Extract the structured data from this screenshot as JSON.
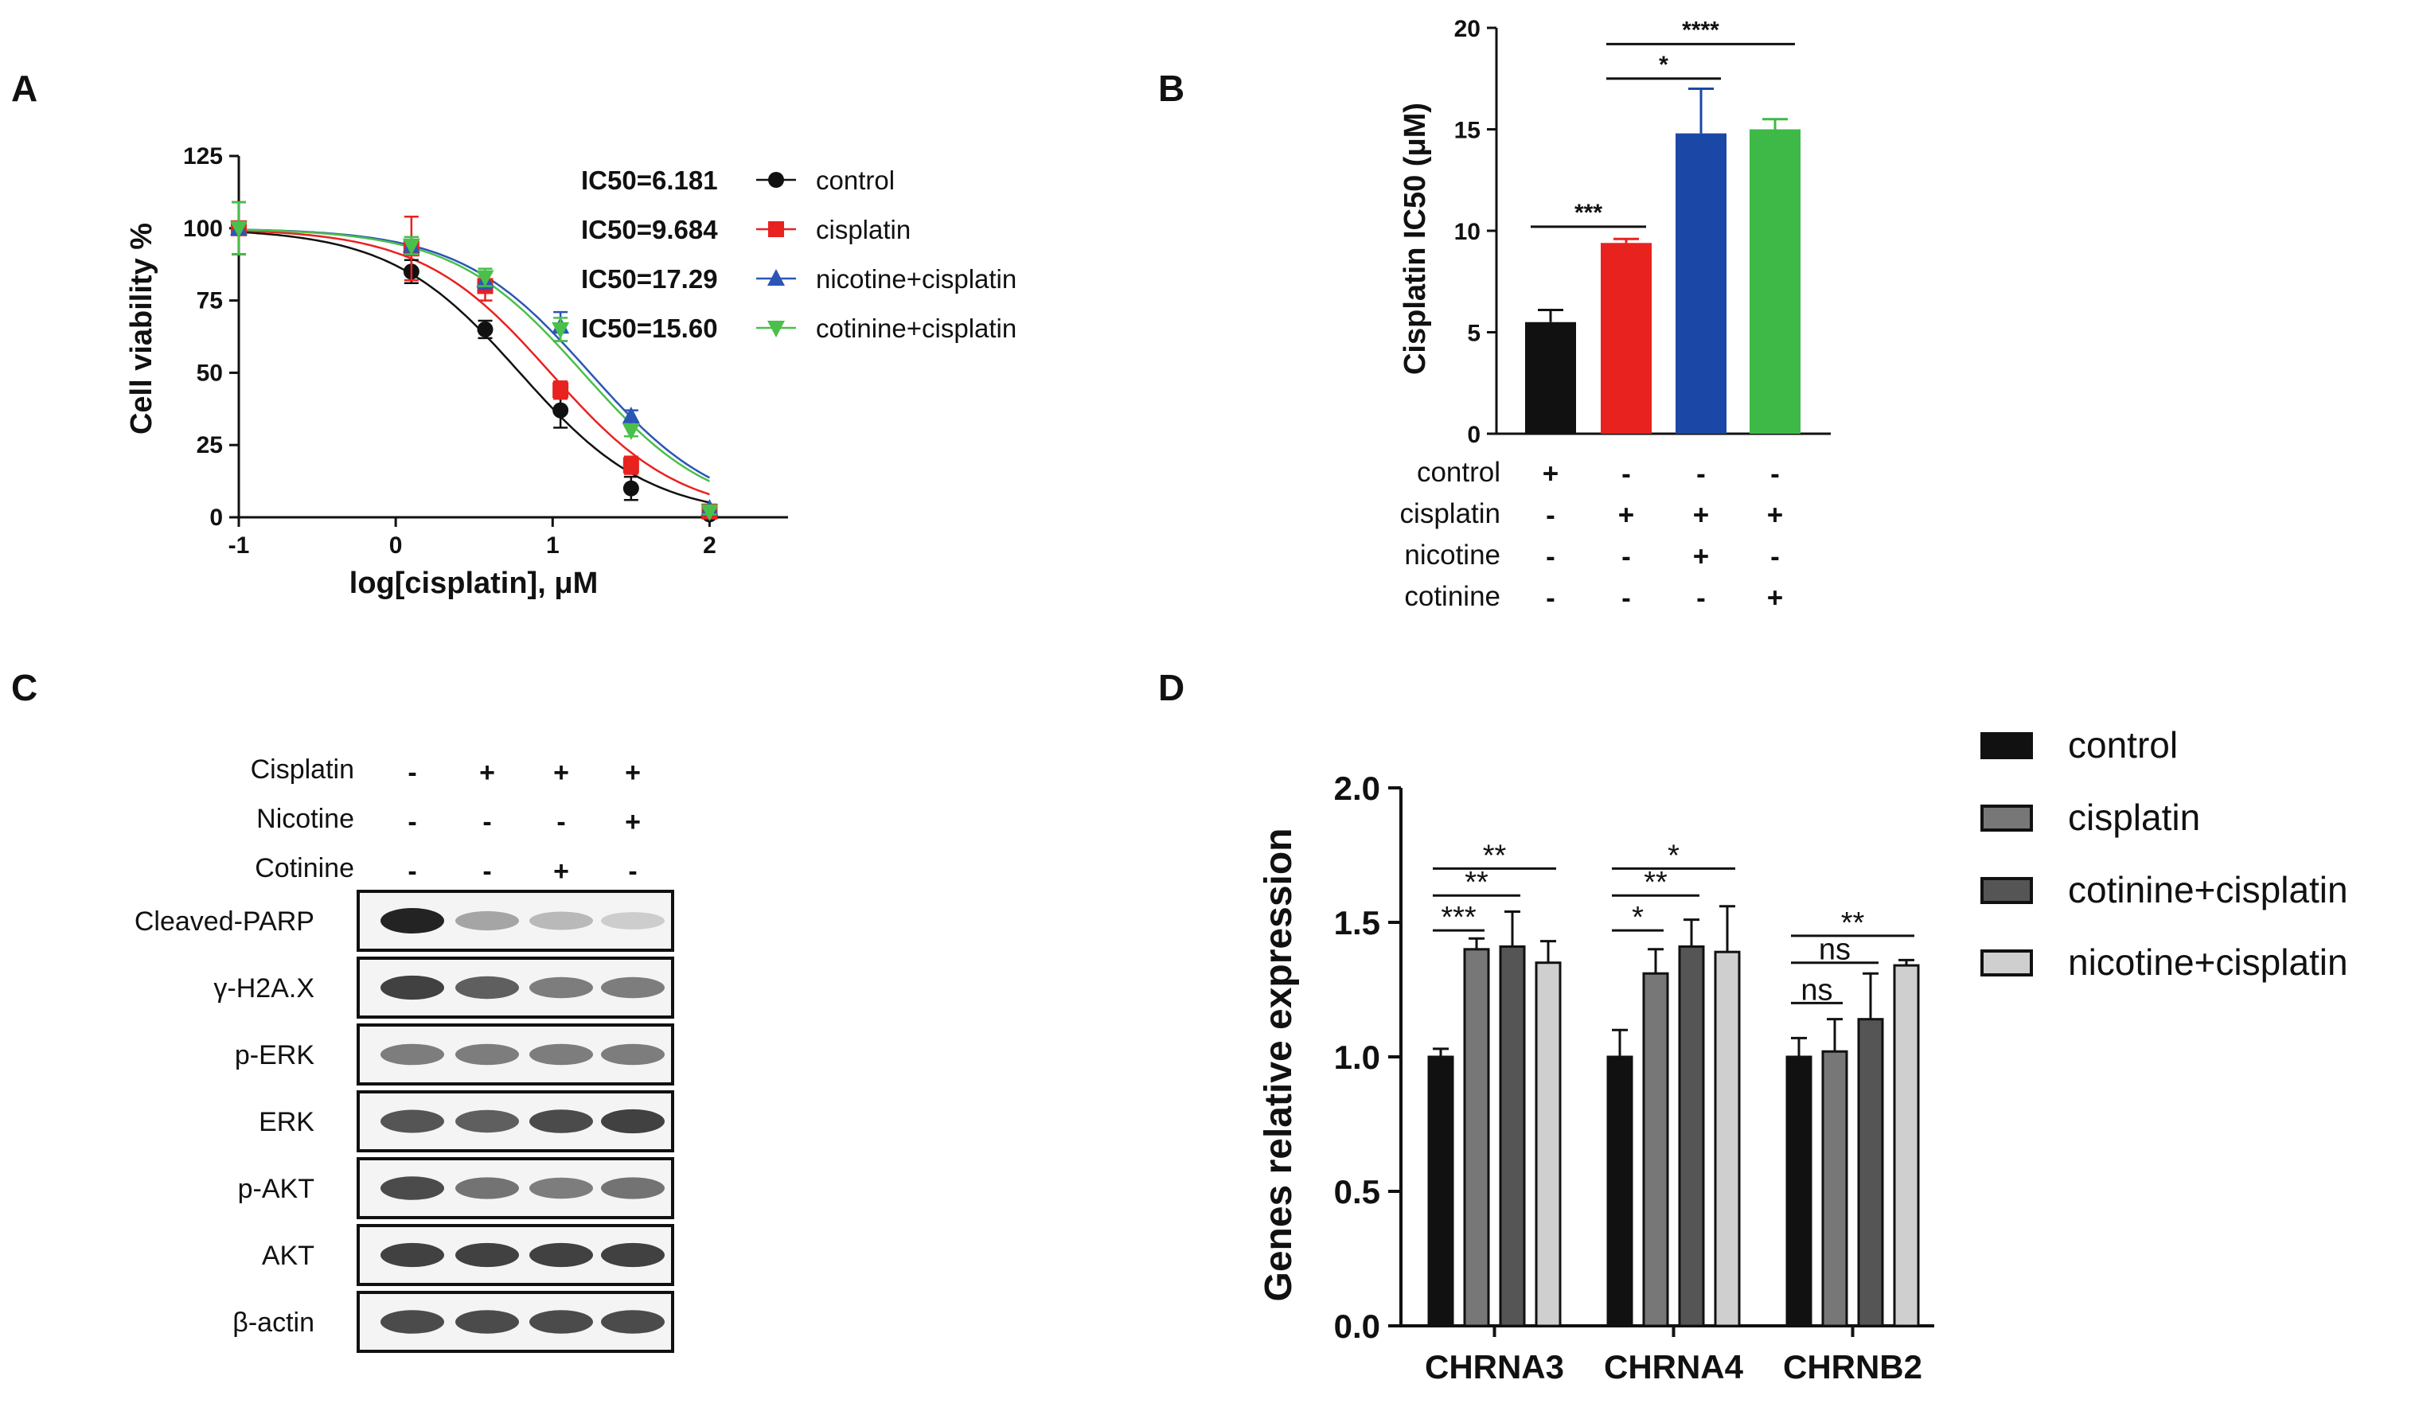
{
  "colors": {
    "control": "#111111",
    "cisplatin": "#e8221f",
    "nicotine_cisplatin": "#1b48a6",
    "cotinine_cisplatin": "#3eb947",
    "curve_control": "#111111",
    "curve_cisplatin": "#e8221f",
    "curve_nicotine": "#2b56b5",
    "curve_cotinine": "#4bbf4b",
    "d_control": "#111111",
    "d_cisplatin": "#777777",
    "d_cotinine": "#555555",
    "d_nicotine": "#cfcfcf"
  },
  "panel_labels": {
    "a": "A",
    "b": "B",
    "c": "C",
    "d": "D"
  },
  "chart_data": [
    {
      "panel": "A",
      "type": "scatter",
      "title": "",
      "xlabel": "log[cisplatin], μM",
      "ylabel": "Cell viability %",
      "xlim": [
        -1,
        2.5
      ],
      "ylim": [
        0,
        125
      ],
      "xticks": [
        -1,
        0,
        1,
        2
      ],
      "yticks": [
        0,
        25,
        50,
        75,
        100,
        125
      ],
      "x": [
        -1,
        0.1,
        0.57,
        1.05,
        1.5,
        2.0
      ],
      "series": [
        {
          "name": "control",
          "ic50_label": "IC50=6.181",
          "ic50": 6.181,
          "marker": "circle",
          "values": [
            100,
            85,
            65,
            37,
            10,
            1
          ],
          "errors": [
            9,
            4,
            3,
            6,
            4,
            1
          ]
        },
        {
          "name": "cisplatin",
          "ic50_label": "IC50=9.684",
          "ic50": 9.684,
          "marker": "square",
          "values": [
            100,
            93,
            80,
            44,
            18,
            2
          ],
          "errors": [
            9,
            11,
            5,
            3,
            3,
            1
          ]
        },
        {
          "name": "nicotine+cisplatin",
          "ic50_label": "IC50=17.29",
          "ic50": 17.29,
          "marker": "triangle-up",
          "values": [
            100,
            94,
            82,
            66,
            35,
            3
          ],
          "errors": [
            9,
            3,
            3,
            5,
            2,
            1
          ]
        },
        {
          "name": "cotinine+cisplatin",
          "ic50_label": "IC50=15.60",
          "ic50": 15.6,
          "marker": "triangle-down",
          "values": [
            100,
            94,
            83,
            65,
            30,
            2
          ],
          "errors": [
            9,
            3,
            3,
            4,
            2,
            1
          ]
        }
      ],
      "legend": "top-right"
    },
    {
      "panel": "B",
      "type": "bar",
      "ylabel": "Cisplatin IC50 (μM)",
      "ylim": [
        0,
        20
      ],
      "yticks": [
        0,
        5,
        10,
        15,
        20
      ],
      "categories": [
        "control",
        "cisplatin",
        "nicotine+cisplatin",
        "cotinine+cisplatin"
      ],
      "values": [
        5.5,
        9.4,
        14.8,
        15.0
      ],
      "errors": [
        0.6,
        0.2,
        2.2,
        0.5
      ],
      "condition_rows": [
        {
          "label": "control",
          "marks": [
            "+",
            "-",
            "-",
            "-"
          ]
        },
        {
          "label": "cisplatin",
          "marks": [
            "-",
            "+",
            "+",
            "+"
          ]
        },
        {
          "label": "nicotine",
          "marks": [
            "-",
            "-",
            "+",
            "-"
          ]
        },
        {
          "label": "cotinine",
          "marks": [
            "-",
            "-",
            "-",
            "+"
          ]
        }
      ],
      "significance": [
        {
          "from": 0,
          "to": 1,
          "y": 10.2,
          "label": "***"
        },
        {
          "from": 1,
          "to": 2,
          "y": 17.5,
          "label": "*"
        },
        {
          "from": 1,
          "to": 3,
          "y": 19.2,
          "label": "****"
        }
      ]
    },
    {
      "panel": "D",
      "type": "bar",
      "ylabel": "Genes relative expression",
      "ylim": [
        0,
        2.0
      ],
      "yticks": [
        "0.0",
        "0.5",
        "1.0",
        "1.5",
        "2.0"
      ],
      "categories": [
        "CHRNA3",
        "CHRNA4",
        "CHRNB2"
      ],
      "series": [
        {
          "name": "control",
          "values": [
            1.0,
            1.0,
            1.0
          ],
          "errors": [
            0.03,
            0.1,
            0.07
          ]
        },
        {
          "name": "cisplatin",
          "values": [
            1.4,
            1.31,
            1.02
          ],
          "errors": [
            0.04,
            0.09,
            0.12
          ]
        },
        {
          "name": "cotinine+cisplatin",
          "values": [
            1.41,
            1.41,
            1.14
          ],
          "errors": [
            0.13,
            0.1,
            0.17
          ]
        },
        {
          "name": "nicotine+cisplatin",
          "values": [
            1.35,
            1.39,
            1.34
          ],
          "errors": [
            0.08,
            0.17,
            0.02
          ]
        }
      ],
      "significance": [
        {
          "group": 0,
          "from": 0,
          "to": 1,
          "y": 1.47,
          "label": "***"
        },
        {
          "group": 0,
          "from": 0,
          "to": 2,
          "y": 1.6,
          "label": "**"
        },
        {
          "group": 0,
          "from": 0,
          "to": 3,
          "y": 1.7,
          "label": "**"
        },
        {
          "group": 1,
          "from": 0,
          "to": 1,
          "y": 1.47,
          "label": "*"
        },
        {
          "group": 1,
          "from": 0,
          "to": 2,
          "y": 1.6,
          "label": "**"
        },
        {
          "group": 1,
          "from": 0,
          "to": 3,
          "y": 1.7,
          "label": "*"
        },
        {
          "group": 2,
          "from": 0,
          "to": 1,
          "y": 1.2,
          "label": "ns"
        },
        {
          "group": 2,
          "from": 0,
          "to": 2,
          "y": 1.35,
          "label": "ns"
        },
        {
          "group": 2,
          "from": 0,
          "to": 3,
          "y": 1.45,
          "label": "**"
        }
      ],
      "legend": "right"
    }
  ],
  "western_blot": {
    "conditions": [
      {
        "label": "Cisplatin",
        "marks": [
          "-",
          "+",
          "+",
          "+"
        ]
      },
      {
        "label": "Nicotine",
        "marks": [
          "-",
          "-",
          "-",
          "+"
        ]
      },
      {
        "label": "Cotinine",
        "marks": [
          "-",
          "-",
          "+",
          "-"
        ]
      }
    ],
    "bands": [
      {
        "label": "Cleaved-PARP",
        "intensity": [
          1.0,
          0.35,
          0.25,
          0.15
        ]
      },
      {
        "label": "γ-H2A.X",
        "intensity": [
          0.85,
          0.7,
          0.55,
          0.55
        ]
      },
      {
        "label": "p-ERK",
        "intensity": [
          0.55,
          0.55,
          0.55,
          0.55
        ]
      },
      {
        "label": "ERK",
        "intensity": [
          0.75,
          0.7,
          0.8,
          0.85
        ]
      },
      {
        "label": "p-AKT",
        "intensity": [
          0.8,
          0.6,
          0.55,
          0.6
        ]
      },
      {
        "label": "AKT",
        "intensity": [
          0.85,
          0.85,
          0.85,
          0.85
        ]
      },
      {
        "label": "β-actin",
        "intensity": [
          0.8,
          0.8,
          0.8,
          0.8
        ]
      }
    ]
  }
}
